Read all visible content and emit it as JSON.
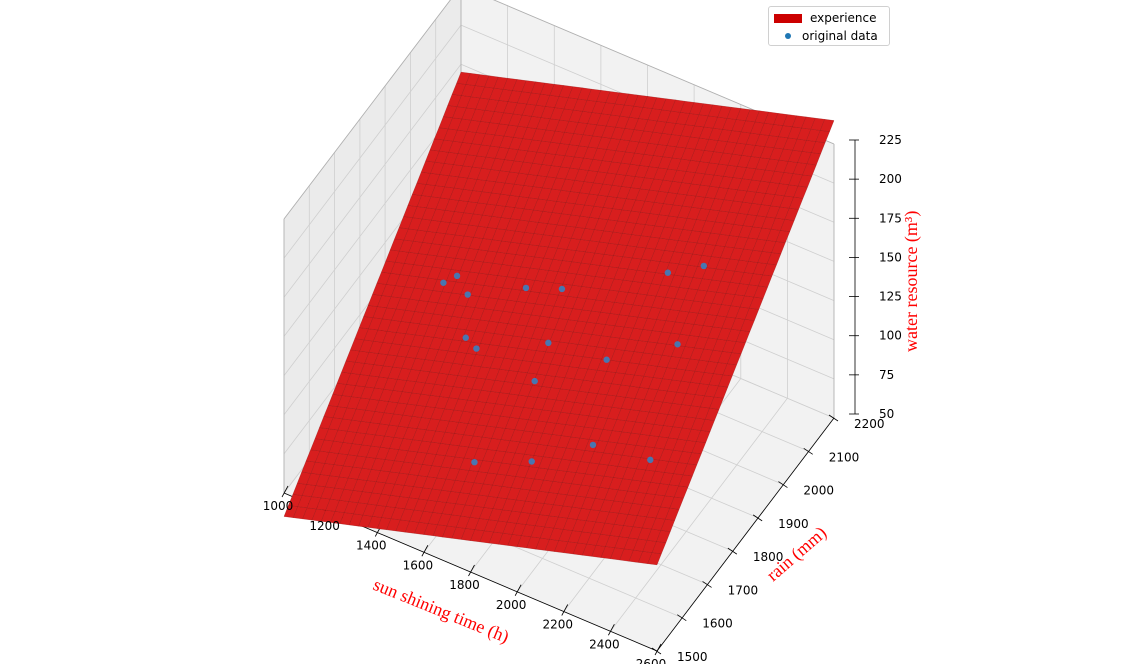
{
  "chart_data": {
    "type": "surface3d",
    "title": "",
    "xlabel": "sun shining time (h)",
    "ylabel": "rain (mm)",
    "zlabel": "water resource (m³)",
    "xlim": [
      1000,
      2600
    ],
    "ylim": [
      1500,
      2200
    ],
    "zlim": [
      50,
      225
    ],
    "x_ticks": [
      "1000",
      "1200",
      "1400",
      "1600",
      "1800",
      "2000",
      "2200",
      "2400",
      "2600"
    ],
    "y_ticks": [
      "1500",
      "1600",
      "1700",
      "1800",
      "1900",
      "2000",
      "2100",
      "2200"
    ],
    "z_ticks": [
      "50",
      "75",
      "100",
      "125",
      "150",
      "175",
      "200",
      "225"
    ],
    "grid": true,
    "legend_position": "top-right",
    "series": [
      {
        "name": "experience",
        "kind": "surface",
        "color": "#cc0000",
        "corners": [
          {
            "x": 1000,
            "y": 1500,
            "z": 35
          },
          {
            "x": 2600,
            "y": 1500,
            "z": 105
          },
          {
            "x": 1000,
            "y": 2200,
            "z": 170
          },
          {
            "x": 2600,
            "y": 2200,
            "z": 240
          }
        ]
      },
      {
        "name": "original data",
        "kind": "scatter",
        "color": "#1f77b4",
        "points": [
          {
            "x": 1200,
            "y": 2000,
            "z": 95
          },
          {
            "x": 1250,
            "y": 1900,
            "z": 115
          },
          {
            "x": 1300,
            "y": 1950,
            "z": 100
          },
          {
            "x": 1400,
            "y": 1850,
            "z": 100
          },
          {
            "x": 1500,
            "y": 1800,
            "z": 110
          },
          {
            "x": 1550,
            "y": 1950,
            "z": 120
          },
          {
            "x": 1600,
            "y": 1700,
            "z": 65
          },
          {
            "x": 1650,
            "y": 2000,
            "z": 115
          },
          {
            "x": 1700,
            "y": 1900,
            "z": 105
          },
          {
            "x": 1750,
            "y": 1800,
            "z": 105
          },
          {
            "x": 1900,
            "y": 1650,
            "z": 95
          },
          {
            "x": 1950,
            "y": 1900,
            "z": 110
          },
          {
            "x": 2000,
            "y": 1800,
            "z": 80
          },
          {
            "x": 2050,
            "y": 2050,
            "z": 140
          },
          {
            "x": 2150,
            "y": 2100,
            "z": 140
          },
          {
            "x": 2200,
            "y": 1950,
            "z": 125
          },
          {
            "x": 2300,
            "y": 1750,
            "z": 100
          }
        ]
      }
    ]
  }
}
